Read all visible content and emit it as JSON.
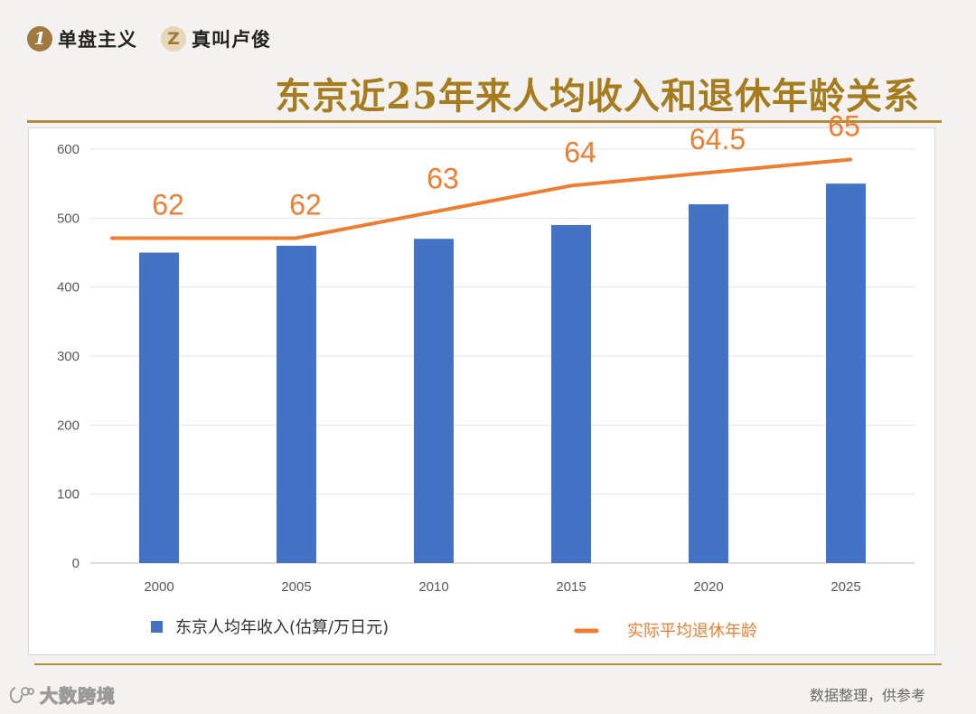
{
  "header": {
    "brand1_badge": "1",
    "brand1_name": "单盘主义",
    "brand2_badge": "Z",
    "brand2_name": "真叫卢俊",
    "title": "东京近25年来人均收入和退休年龄关系"
  },
  "footer": {
    "brand": "大数跨境",
    "note": "数据整理，供参考"
  },
  "colors": {
    "title": "#a67c1f",
    "bar": "#4472c4",
    "line": "#ed7d31",
    "rule": "#b08e3a"
  },
  "chart_data": {
    "type": "bar+line",
    "categories": [
      "2000",
      "2005",
      "2010",
      "2015",
      "2020",
      "2025"
    ],
    "series": [
      {
        "name": "东京人均年收入(估算/万日元)",
        "type": "bar",
        "values": [
          450,
          460,
          470,
          490,
          520,
          550
        ]
      },
      {
        "name": "实际平均退休年龄",
        "type": "line",
        "values": [
          62,
          62,
          63,
          64,
          64.5,
          65
        ],
        "labels": [
          "62",
          "62",
          "63",
          "64",
          "64.5",
          "65"
        ]
      }
    ],
    "y_axis": {
      "min": 0,
      "max": 600,
      "ticks": [
        "0",
        "100",
        "200",
        "300",
        "400",
        "500",
        "600"
      ]
    },
    "grid": true,
    "legend_position": "bottom"
  }
}
